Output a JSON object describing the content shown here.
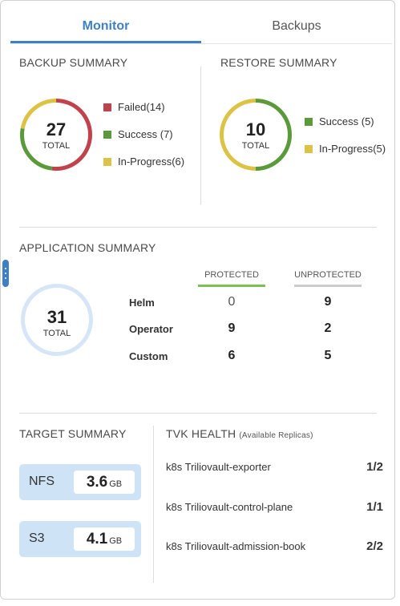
{
  "tabs": [
    {
      "label": "Monitor",
      "active": true
    },
    {
      "label": "Backups",
      "active": false
    }
  ],
  "backup_summary": {
    "title": "BACKUP SUMMARY",
    "total": "27",
    "total_label": "TOTAL",
    "legend": [
      {
        "label": "Failed(14)",
        "value": 14,
        "color": "#c0434c"
      },
      {
        "label": "Success (7)",
        "value": 7,
        "color": "#5a9a3a"
      },
      {
        "label": "In-Progress(6)",
        "value": 6,
        "color": "#dcc245"
      }
    ]
  },
  "restore_summary": {
    "title": "RESTORE SUMMARY",
    "total": "10",
    "total_label": "TOTAL",
    "legend": [
      {
        "label": "Success (5)",
        "value": 5,
        "color": "#5a9a3a"
      },
      {
        "label": "In-Progress(5)",
        "value": 5,
        "color": "#dcc245"
      }
    ]
  },
  "application_summary": {
    "title": "APPLICATION SUMMARY",
    "total": "31",
    "total_label": "TOTAL",
    "ring_color": "#d6e6f7",
    "columns": [
      "PROTECTED",
      "UNPROTECTED"
    ],
    "column_colors": [
      "#7cc04f",
      "#cccccc"
    ],
    "rows": [
      {
        "label": "Helm",
        "protected": "0",
        "unprotected": "9"
      },
      {
        "label": "Operator",
        "protected": "9",
        "unprotected": "2"
      },
      {
        "label": "Custom",
        "protected": "6",
        "unprotected": "5"
      }
    ]
  },
  "target_summary": {
    "title": "TARGET SUMMARY",
    "targets": [
      {
        "name": "NFS",
        "value": "3.6",
        "unit": "GB"
      },
      {
        "name": "S3",
        "value": "4.1",
        "unit": "GB"
      }
    ]
  },
  "tvk_health": {
    "title": "TVK HEALTH",
    "subtitle": "(Available Replicas)",
    "items": [
      {
        "name": "k8s Triliovault-exporter",
        "value": "1/2"
      },
      {
        "name": "k8s Triliovault-control-plane",
        "value": "1/1"
      },
      {
        "name": "k8s Triliovault-admission-book",
        "value": "2/2"
      }
    ]
  },
  "colors": {
    "accent": "#3f7fc4"
  },
  "icons": {
    "side_handle": "drag-handle-icon"
  }
}
